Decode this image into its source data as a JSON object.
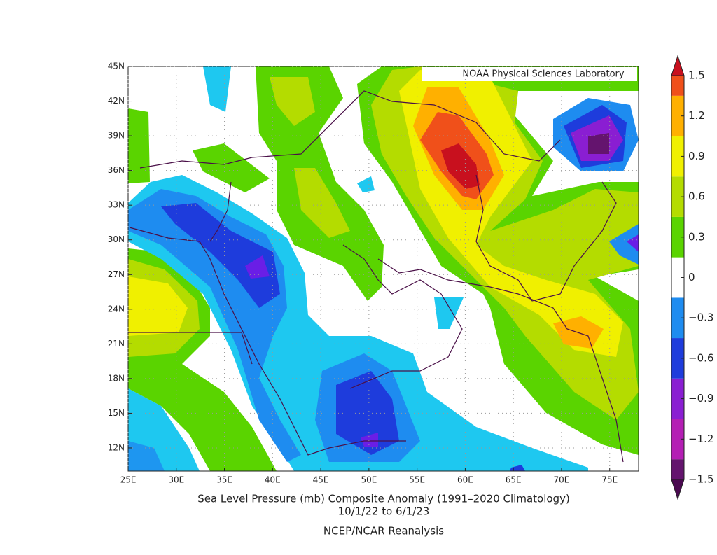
{
  "map": {
    "title": "Sea Level Pressure (mb) Composite Anomaly (1991–2020 Climatology)",
    "subtitle": "10/1/22  to 6/1/23",
    "source": "NCEP/NCAR Reanalysis",
    "credit": "NOAA Physical Sciences Laboratory",
    "xlim": [
      25,
      78
    ],
    "ylim": [
      10,
      45
    ],
    "xticks": [
      {
        "value": 25,
        "label": "25E"
      },
      {
        "value": 30,
        "label": "30E"
      },
      {
        "value": 35,
        "label": "35E"
      },
      {
        "value": 40,
        "label": "40E"
      },
      {
        "value": 45,
        "label": "45E"
      },
      {
        "value": 50,
        "label": "50E"
      },
      {
        "value": 55,
        "label": "55E"
      },
      {
        "value": 60,
        "label": "60E"
      },
      {
        "value": 65,
        "label": "65E"
      },
      {
        "value": 70,
        "label": "70E"
      },
      {
        "value": 75,
        "label": "75E"
      }
    ],
    "yticks": [
      {
        "value": 12,
        "label": "12N"
      },
      {
        "value": 15,
        "label": "15N"
      },
      {
        "value": 18,
        "label": "18N"
      },
      {
        "value": 21,
        "label": "21N"
      },
      {
        "value": 24,
        "label": "24N"
      },
      {
        "value": 27,
        "label": "27N"
      },
      {
        "value": 30,
        "label": "30N"
      },
      {
        "value": 33,
        "label": "33N"
      },
      {
        "value": 36,
        "label": "36N"
      },
      {
        "value": 39,
        "label": "39N"
      },
      {
        "value": 42,
        "label": "42N"
      },
      {
        "value": 45,
        "label": "45N"
      }
    ],
    "colorbar": {
      "lim": [
        -1.5,
        1.5
      ],
      "ticks": [
        {
          "value": -1.5,
          "label": "−1.5"
        },
        {
          "value": -1.2,
          "label": "−1.2"
        },
        {
          "value": -0.9,
          "label": "−0.9"
        },
        {
          "value": -0.6,
          "label": "−0.6"
        },
        {
          "value": -0.3,
          "label": "−0.3"
        },
        0,
        0.3,
        0.6,
        0.9,
        1.2,
        1.5
      ]
    }
  }
}
